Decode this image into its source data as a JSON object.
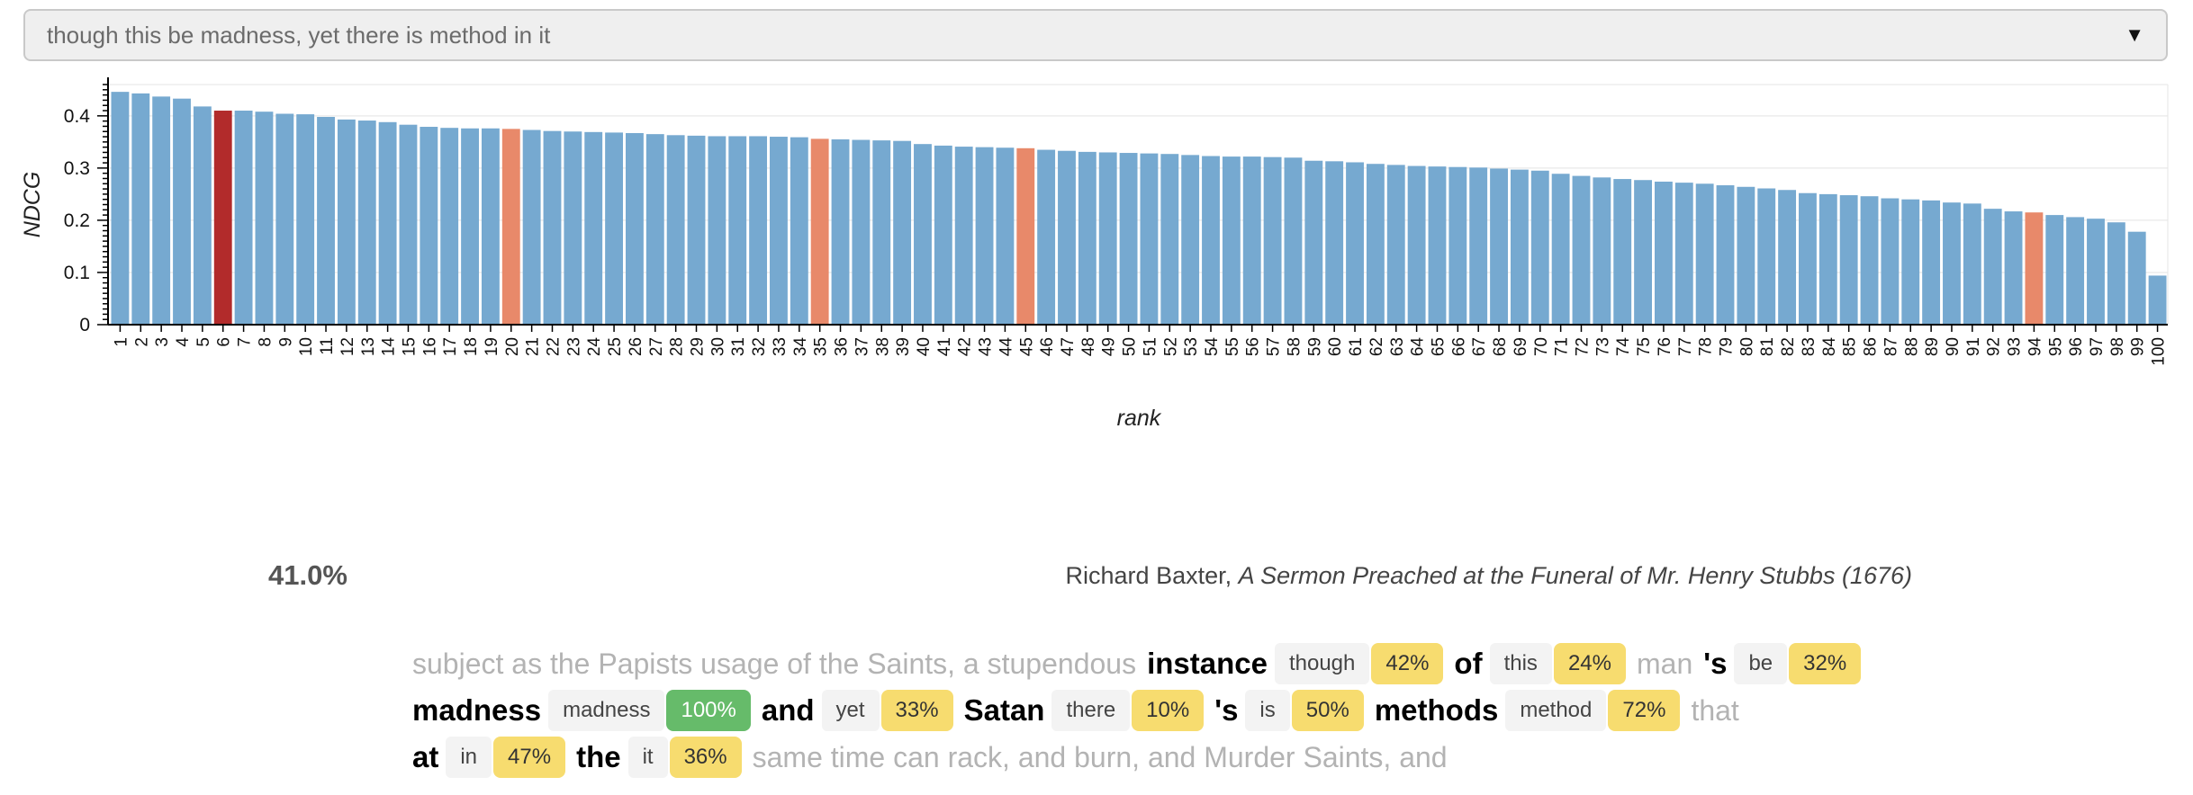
{
  "query": {
    "text": "though this be madness, yet there is method in it",
    "arrow": "▼"
  },
  "colors": {
    "bar": "#76a9d0",
    "highlight": "#e8896a",
    "current": "#b22b2b"
  },
  "chart_data": {
    "type": "bar",
    "ylabel": "NDCG",
    "xlabel": "rank",
    "ylim": [
      0,
      0.46
    ],
    "yticks": [
      0,
      0.1,
      0.2,
      0.3,
      0.4
    ],
    "grid": "horizontal",
    "categories": [
      1,
      2,
      3,
      4,
      5,
      6,
      7,
      8,
      9,
      10,
      11,
      12,
      13,
      14,
      15,
      16,
      17,
      18,
      19,
      20,
      21,
      22,
      23,
      24,
      25,
      26,
      27,
      28,
      29,
      30,
      31,
      32,
      33,
      34,
      35,
      36,
      37,
      38,
      39,
      40,
      41,
      42,
      43,
      44,
      45,
      46,
      47,
      48,
      49,
      50,
      51,
      52,
      53,
      54,
      55,
      56,
      57,
      58,
      59,
      60,
      61,
      62,
      63,
      64,
      65,
      66,
      67,
      68,
      69,
      70,
      71,
      72,
      73,
      74,
      75,
      76,
      77,
      78,
      79,
      80,
      81,
      82,
      83,
      84,
      85,
      86,
      87,
      88,
      89,
      90,
      91,
      92,
      93,
      94,
      95,
      96,
      97,
      98,
      99,
      100
    ],
    "values": [
      0.446,
      0.443,
      0.437,
      0.433,
      0.418,
      0.41,
      0.41,
      0.408,
      0.404,
      0.403,
      0.398,
      0.393,
      0.391,
      0.388,
      0.383,
      0.379,
      0.377,
      0.376,
      0.376,
      0.375,
      0.373,
      0.371,
      0.37,
      0.369,
      0.368,
      0.367,
      0.365,
      0.363,
      0.362,
      0.361,
      0.361,
      0.361,
      0.36,
      0.359,
      0.356,
      0.355,
      0.354,
      0.353,
      0.352,
      0.346,
      0.343,
      0.341,
      0.34,
      0.339,
      0.338,
      0.335,
      0.333,
      0.331,
      0.33,
      0.329,
      0.328,
      0.327,
      0.325,
      0.323,
      0.322,
      0.322,
      0.321,
      0.32,
      0.314,
      0.313,
      0.311,
      0.308,
      0.306,
      0.304,
      0.303,
      0.302,
      0.301,
      0.299,
      0.297,
      0.295,
      0.289,
      0.285,
      0.282,
      0.279,
      0.277,
      0.274,
      0.272,
      0.27,
      0.267,
      0.264,
      0.261,
      0.258,
      0.252,
      0.25,
      0.248,
      0.246,
      0.242,
      0.24,
      0.238,
      0.234,
      0.232,
      0.222,
      0.217,
      0.215,
      0.21,
      0.206,
      0.203,
      0.196,
      0.178,
      0.094
    ],
    "highlighted_ranks": [
      20,
      35,
      45,
      94
    ],
    "current_rank": 6
  },
  "result": {
    "score": "41.0%",
    "author": "Richard Baxter, ",
    "work": "A Sermon Preached at the Funeral of Mr. Henry Stubbs (1676)"
  },
  "passage": {
    "lines": [
      [
        {
          "type": "ctx",
          "text": "subject as the Papists usage of the Saints, a stupendous"
        },
        {
          "type": "tok",
          "text": "instance"
        },
        {
          "type": "qw",
          "text": "though"
        },
        {
          "type": "pct",
          "text": "42%",
          "color": "yellow"
        },
        {
          "type": "tok",
          "text": "of"
        },
        {
          "type": "qw",
          "text": "this"
        },
        {
          "type": "pct",
          "text": "24%",
          "color": "yellow"
        },
        {
          "type": "ctx",
          "text": "man"
        },
        {
          "type": "tok",
          "text": "'s"
        },
        {
          "type": "qw",
          "text": "be"
        },
        {
          "type": "pct",
          "text": "32%",
          "color": "yellow"
        }
      ],
      [
        {
          "type": "tok",
          "text": "madness"
        },
        {
          "type": "qw",
          "text": "madness"
        },
        {
          "type": "pct",
          "text": "100%",
          "color": "green"
        },
        {
          "type": "tok",
          "text": "and"
        },
        {
          "type": "qw",
          "text": "yet"
        },
        {
          "type": "pct",
          "text": "33%",
          "color": "yellow"
        },
        {
          "type": "tok",
          "text": "Satan"
        },
        {
          "type": "qw",
          "text": "there"
        },
        {
          "type": "pct",
          "text": "10%",
          "color": "yellow"
        },
        {
          "type": "tok",
          "text": "'s"
        },
        {
          "type": "qw",
          "text": "is"
        },
        {
          "type": "pct",
          "text": "50%",
          "color": "yellow"
        },
        {
          "type": "tok",
          "text": "methods"
        },
        {
          "type": "qw",
          "text": "method"
        },
        {
          "type": "pct",
          "text": "72%",
          "color": "yellow"
        },
        {
          "type": "ctx",
          "text": "that"
        }
      ],
      [
        {
          "type": "tok",
          "text": "at"
        },
        {
          "type": "qw",
          "text": "in"
        },
        {
          "type": "pct",
          "text": "47%",
          "color": "yellow"
        },
        {
          "type": "tok",
          "text": "the"
        },
        {
          "type": "qw",
          "text": "it"
        },
        {
          "type": "pct",
          "text": "36%",
          "color": "yellow"
        },
        {
          "type": "ctx",
          "text": "same time can rack, and burn, and Murder Saints, and"
        }
      ]
    ]
  }
}
